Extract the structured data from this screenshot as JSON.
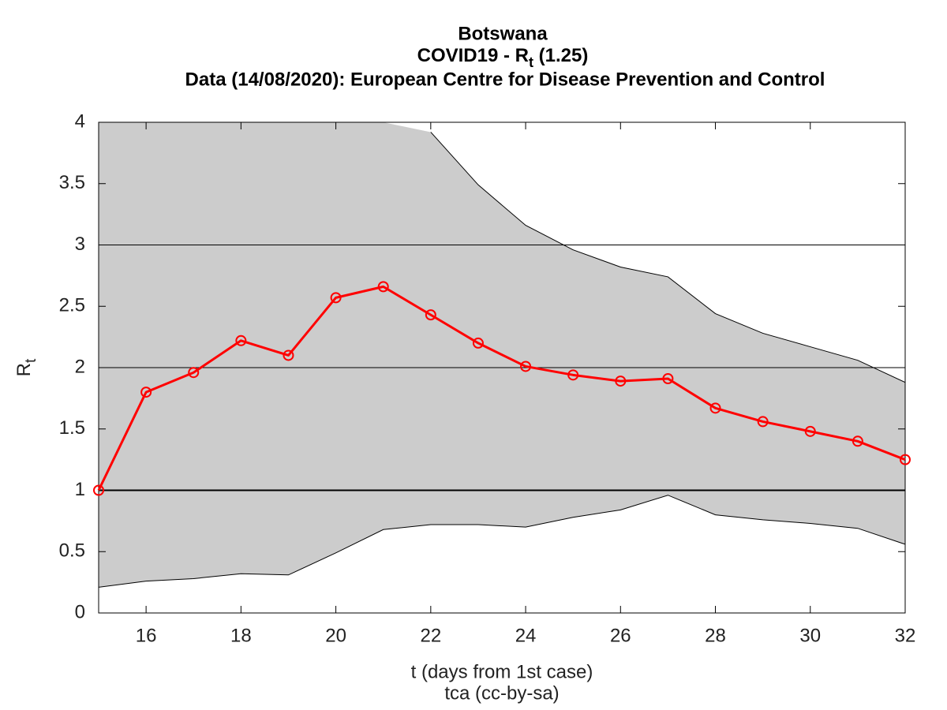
{
  "chart_data": {
    "type": "line",
    "title_lines": [
      "Botswana",
      {
        "text": "COVID19 - R",
        "sub": "t",
        "after": " (1.25)"
      },
      "Data (14/08/2020): European Centre for Disease Prevention and Control"
    ],
    "xlabel": "t (days from 1st case)",
    "footer": "tca (cc-by-sa)",
    "ylabel": {
      "text": "R",
      "sub": "t"
    },
    "x": [
      15,
      16,
      17,
      18,
      19,
      20,
      21,
      22,
      23,
      24,
      25,
      26,
      27,
      28,
      29,
      30,
      31,
      32
    ],
    "series": [
      {
        "color": "#ff0000",
        "values": [
          1.0,
          1.8,
          1.96,
          2.22,
          2.1,
          2.57,
          2.66,
          2.43,
          2.2,
          2.01,
          1.94,
          1.89,
          1.91,
          1.67,
          1.56,
          1.48,
          1.4,
          1.25
        ]
      }
    ],
    "band": {
      "color": "#cccccc",
      "upper": [
        null,
        null,
        null,
        null,
        null,
        null,
        null,
        3.92,
        3.49,
        3.16,
        2.96,
        2.82,
        2.74,
        2.44,
        2.28,
        2.17,
        2.06,
        1.88
      ],
      "lower": [
        0.21,
        0.26,
        0.28,
        0.32,
        0.31,
        0.49,
        0.68,
        0.72,
        0.72,
        0.7,
        0.78,
        0.84,
        0.96,
        0.8,
        0.76,
        0.73,
        0.69,
        0.56
      ]
    },
    "hlines": [
      1,
      2,
      3
    ],
    "xlim": [
      15,
      32
    ],
    "ylim": [
      0,
      4
    ],
    "xticks": [
      16,
      18,
      20,
      22,
      24,
      26,
      28,
      30,
      32
    ],
    "yticks": [
      0,
      0.5,
      1,
      1.5,
      2,
      2.5,
      3,
      3.5,
      4
    ]
  }
}
